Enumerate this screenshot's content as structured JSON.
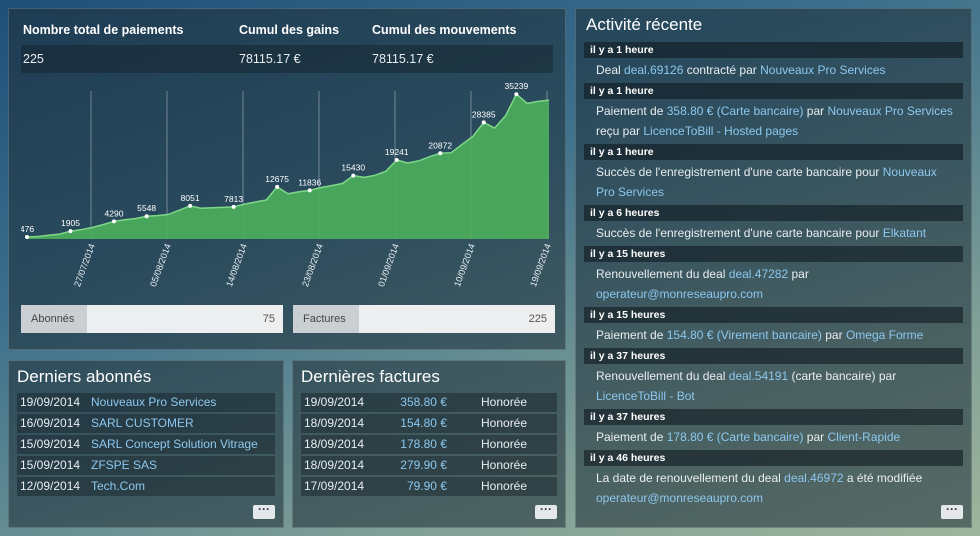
{
  "stats": {
    "headers": [
      "Nombre total de paiements",
      "Cumul des gains",
      "Cumul des mouvements"
    ],
    "values": [
      "225",
      "78115.17 €",
      "78115.17 €"
    ]
  },
  "chart_data": {
    "type": "area",
    "x": [
      "27/07/2014",
      "05/08/2014",
      "14/08/2014",
      "23/08/2014",
      "01/09/2014",
      "10/09/2014",
      "19/09/2014"
    ],
    "points": [
      476,
      600,
      900,
      1200,
      1905,
      2300,
      2800,
      3500,
      4290,
      4700,
      5000,
      5548,
      5700,
      6000,
      7000,
      8051,
      7500,
      7600,
      7700,
      7813,
      8500,
      9000,
      9500,
      12675,
      11000,
      11500,
      11836,
      12500,
      13000,
      13500,
      15430,
      15000,
      15500,
      16500,
      19241,
      18500,
      19000,
      20000,
      20872,
      21000,
      23000,
      25000,
      28385,
      27000,
      30000,
      35239,
      33000,
      33500,
      33800
    ],
    "data_labels": [
      {
        "i": 0,
        "v": "476"
      },
      {
        "i": 4,
        "v": "1905"
      },
      {
        "i": 8,
        "v": "4290"
      },
      {
        "i": 11,
        "v": "5548"
      },
      {
        "i": 15,
        "v": "8051"
      },
      {
        "i": 19,
        "v": "7813"
      },
      {
        "i": 23,
        "v": "12675"
      },
      {
        "i": 26,
        "v": "11836"
      },
      {
        "i": 30,
        "v": "15430"
      },
      {
        "i": 34,
        "v": "19241"
      },
      {
        "i": 38,
        "v": "20872"
      },
      {
        "i": 42,
        "v": "28385"
      },
      {
        "i": 45,
        "v": "35239"
      }
    ],
    "ylim": [
      0,
      37000
    ],
    "color": "#4caf5c"
  },
  "bars": {
    "abonnes_label": "Abonnés",
    "abonnes_value": "75",
    "factures_label": "Factures",
    "factures_value": "225"
  },
  "abonnes": {
    "title": "Derniers abonnés",
    "rows": [
      {
        "date": "19/09/2014",
        "name": "Nouveaux Pro Services"
      },
      {
        "date": "16/09/2014",
        "name": "SARL CUSTOMER"
      },
      {
        "date": "15/09/2014",
        "name": "SARL Concept Solution Vitrage"
      },
      {
        "date": "15/09/2014",
        "name": "ZFSPE SAS"
      },
      {
        "date": "12/09/2014",
        "name": "Tech.Com"
      }
    ],
    "more": "···"
  },
  "factures": {
    "title": "Dernières factures",
    "rows": [
      {
        "date": "19/09/2014",
        "amount": "358.80 €",
        "status": "Honorée"
      },
      {
        "date": "18/09/2014",
        "amount": "154.80 €",
        "status": "Honorée"
      },
      {
        "date": "18/09/2014",
        "amount": "178.80 €",
        "status": "Honorée"
      },
      {
        "date": "18/09/2014",
        "amount": "279.90 €",
        "status": "Honorée"
      },
      {
        "date": "17/09/2014",
        "amount": "79.90 €",
        "status": "Honorée"
      }
    ],
    "more": "···"
  },
  "activity": {
    "title": "Activité récente",
    "more": "···",
    "items": [
      {
        "time": "il y a 1 heure",
        "parts": [
          [
            "t",
            "Deal "
          ],
          [
            "l",
            "deal.69126"
          ],
          [
            "t",
            " contracté par "
          ],
          [
            "l",
            "Nouveaux Pro Services"
          ]
        ]
      },
      {
        "time": "il y a 1 heure",
        "parts": [
          [
            "t",
            "Paiement de "
          ],
          [
            "l",
            "358.80 € (Carte bancaire)"
          ],
          [
            "t",
            " par "
          ],
          [
            "l",
            "Nouveaux Pro Services"
          ],
          [
            "t",
            " reçu par "
          ],
          [
            "l",
            "LicenceToBill - Hosted pages"
          ]
        ]
      },
      {
        "time": "il y a 1 heure",
        "parts": [
          [
            "t",
            "Succès de l'enregistrement d'une carte bancaire pour "
          ],
          [
            "l",
            "Nouveaux Pro Services"
          ]
        ]
      },
      {
        "time": "il y a 6 heures",
        "parts": [
          [
            "t",
            "Succès de l'enregistrement d'une carte bancaire pour "
          ],
          [
            "l",
            "Elkatant"
          ]
        ]
      },
      {
        "time": "il y a 15 heures",
        "parts": [
          [
            "t",
            "Renouvellement du deal "
          ],
          [
            "l",
            "deal.47282"
          ],
          [
            "t",
            " par "
          ],
          [
            "l",
            "operateur@monreseaupro.com"
          ]
        ]
      },
      {
        "time": "il y a 15 heures",
        "parts": [
          [
            "t",
            "Paiement de "
          ],
          [
            "l",
            "154.80 € (Virement bancaire)"
          ],
          [
            "t",
            " par "
          ],
          [
            "l",
            "Omega Forme"
          ]
        ]
      },
      {
        "time": "il y a 37 heures",
        "parts": [
          [
            "t",
            "Renouvellement du deal "
          ],
          [
            "l",
            "deal.54191"
          ],
          [
            "t",
            " (carte bancaire) par "
          ],
          [
            "l",
            "LicenceToBill - Bot"
          ]
        ]
      },
      {
        "time": "il y a 37 heures",
        "parts": [
          [
            "t",
            "Paiement de "
          ],
          [
            "l",
            "178.80 € (Carte bancaire)"
          ],
          [
            "t",
            " par "
          ],
          [
            "l",
            "Client-Rapide"
          ]
        ]
      },
      {
        "time": "il y a 46 heures",
        "parts": [
          [
            "t",
            "La date de renouvellement du deal "
          ],
          [
            "l",
            "deal.46972"
          ],
          [
            "t",
            " a été modifiée "
          ],
          [
            "l",
            "operateur@monreseaupro.com"
          ]
        ]
      }
    ]
  }
}
